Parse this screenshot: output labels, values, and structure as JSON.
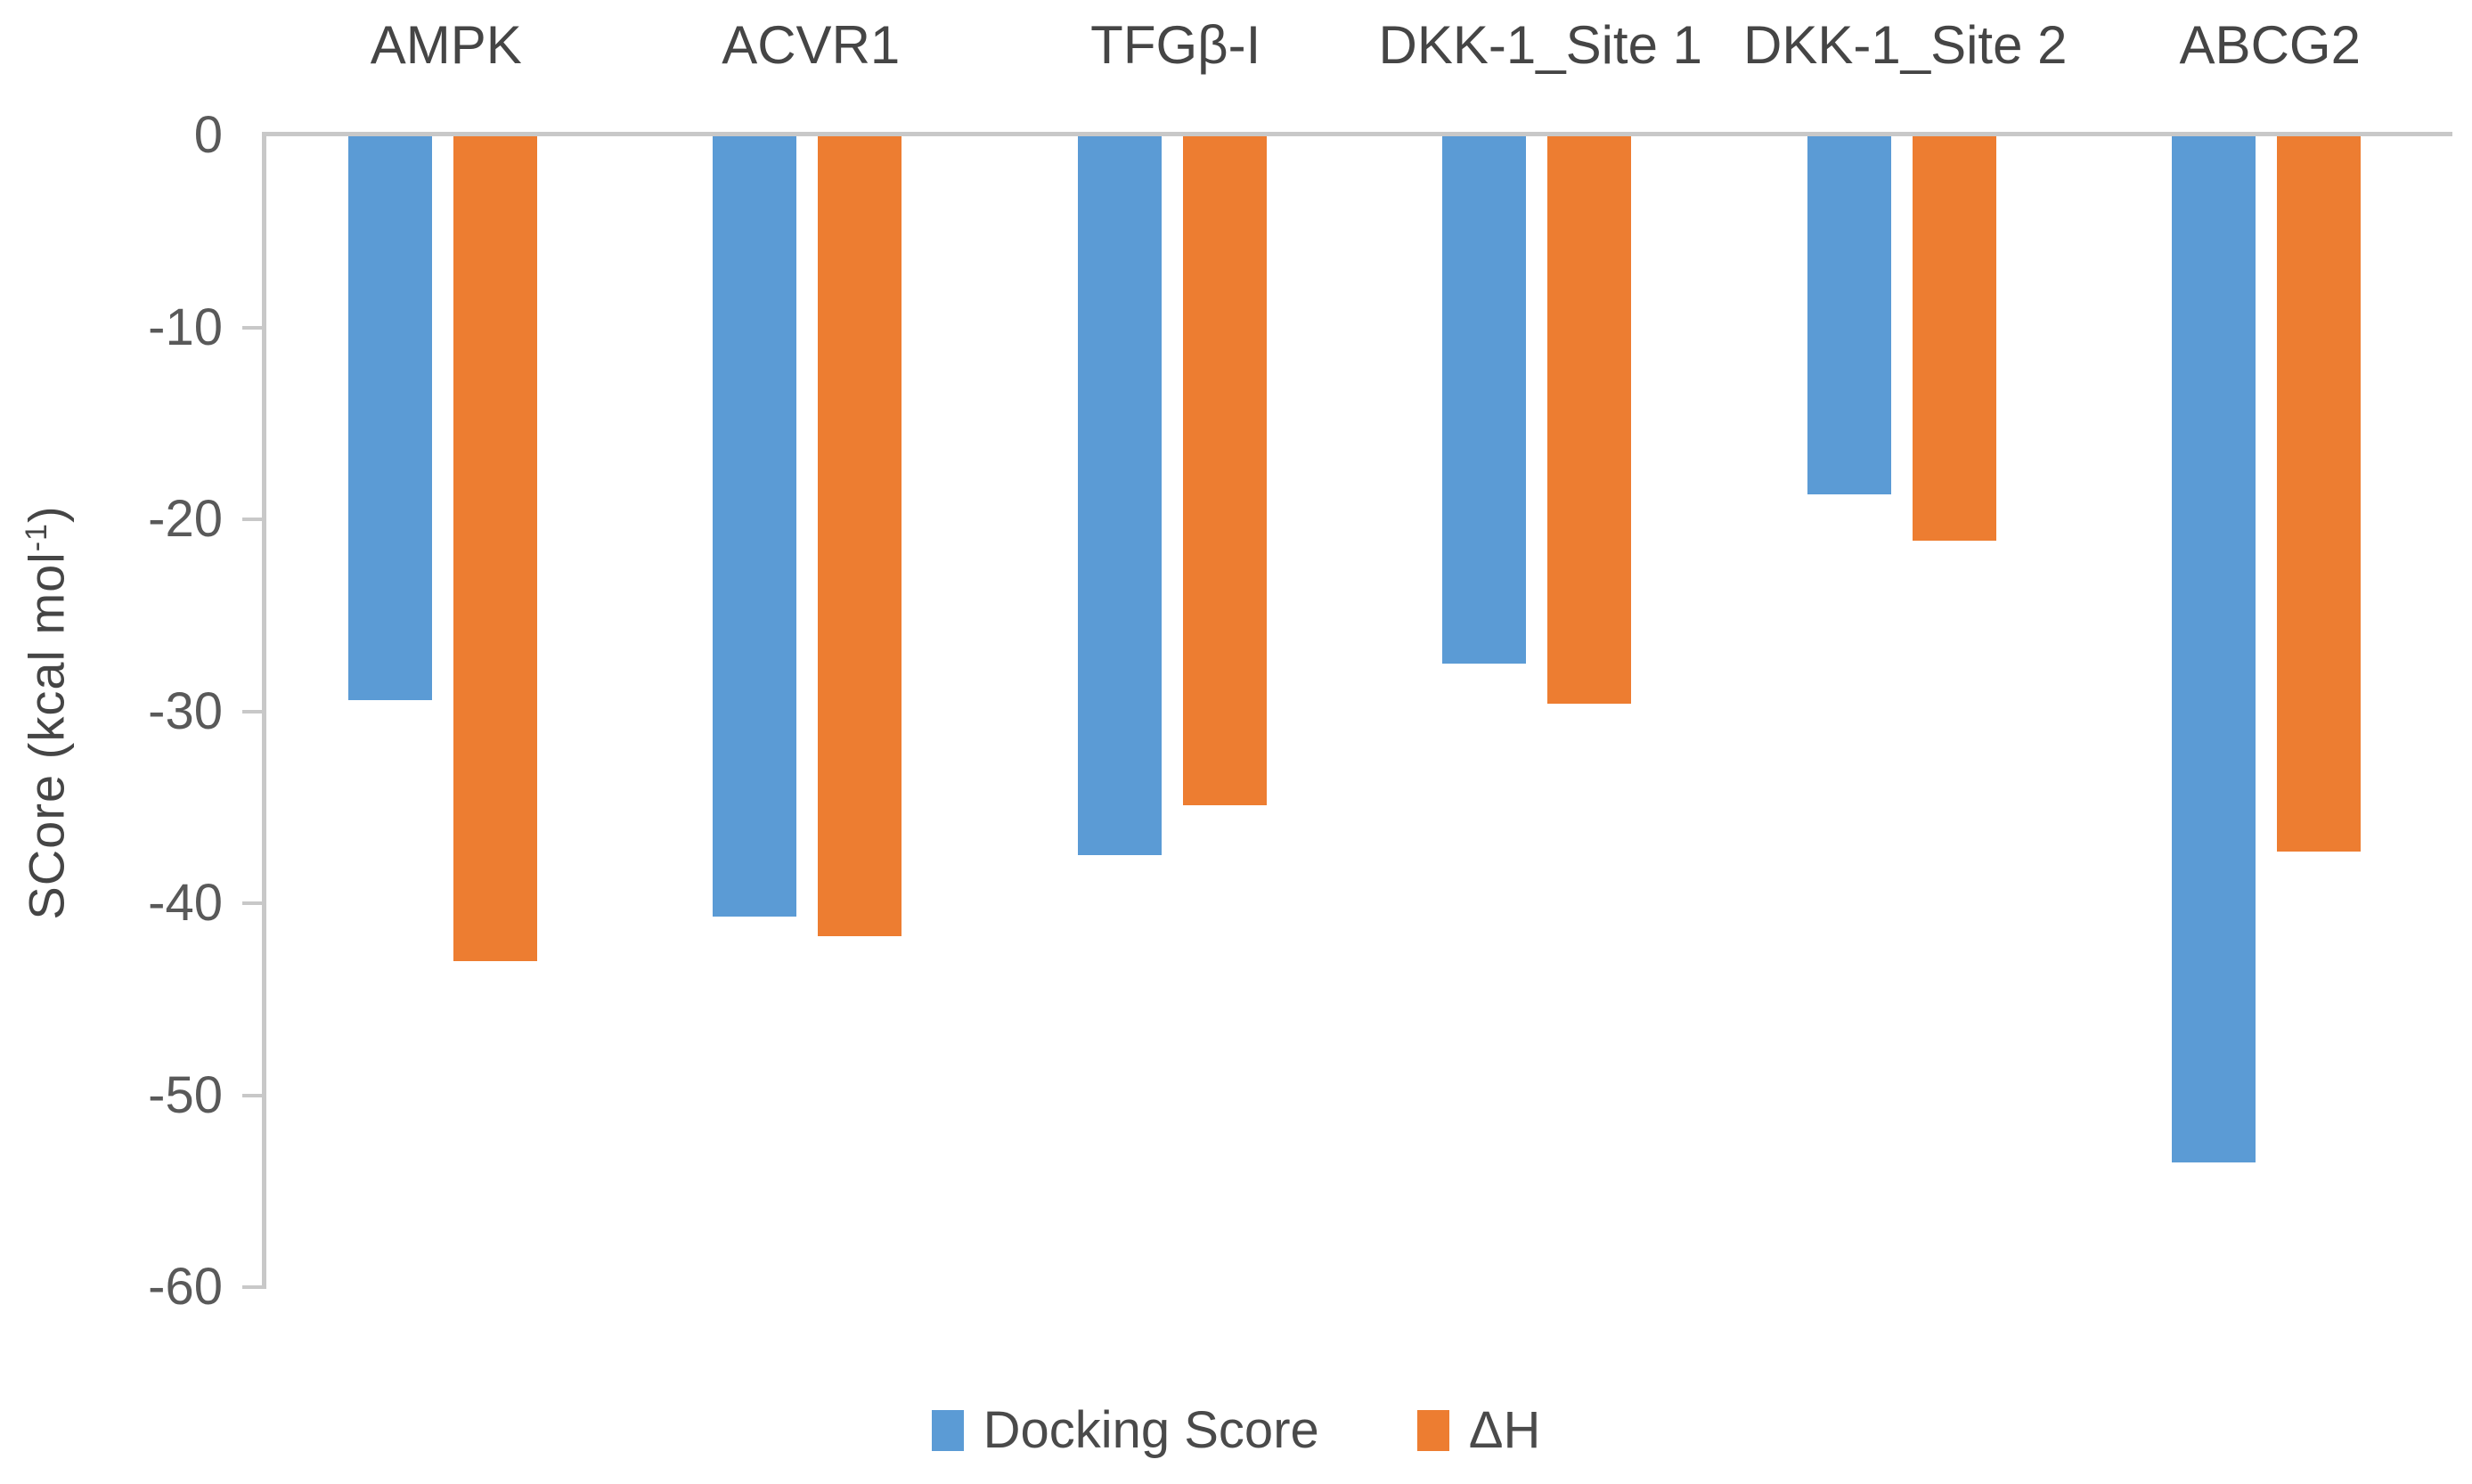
{
  "chart_data": {
    "type": "bar",
    "title": "",
    "xlabel": "",
    "ylabel": "SCore (kcal mol-1)",
    "ylabel_parts": {
      "main": "SCore (kcal mol",
      "sup": "-1",
      "close": ")"
    },
    "categories": [
      "AMPK",
      "ACVR1",
      "TFGβ-I",
      "DKK-1_Site 1",
      "DKK-1_Site 2",
      "ABCG2"
    ],
    "series": [
      {
        "name": "Docking Score",
        "color": "#5B9BD5",
        "values": [
          -29.5,
          -40.8,
          -37.6,
          -27.6,
          -18.8,
          -53.6
        ]
      },
      {
        "name": "ΔH",
        "color": "#ED7D31",
        "values": [
          -43.1,
          -41.8,
          -35.0,
          -29.7,
          -21.2,
          -37.4
        ]
      }
    ],
    "ylim": [
      -60,
      0
    ],
    "yticks": [
      0,
      -10,
      -20,
      -30,
      -40,
      -50,
      -60
    ],
    "grid": false,
    "legend_position": "bottom",
    "axis_color": "#C8C8C8",
    "tick_text_color": "#595959",
    "category_text_color": "#454545"
  },
  "axis": {
    "y_title_main": "SCore (kcal mol",
    "y_title_sup": "-1",
    "y_title_close": ")"
  },
  "legend": {
    "items": [
      {
        "label": "Docking Score",
        "color": "#5B9BD5"
      },
      {
        "label": "ΔH",
        "color": "#ED7D31"
      }
    ]
  }
}
